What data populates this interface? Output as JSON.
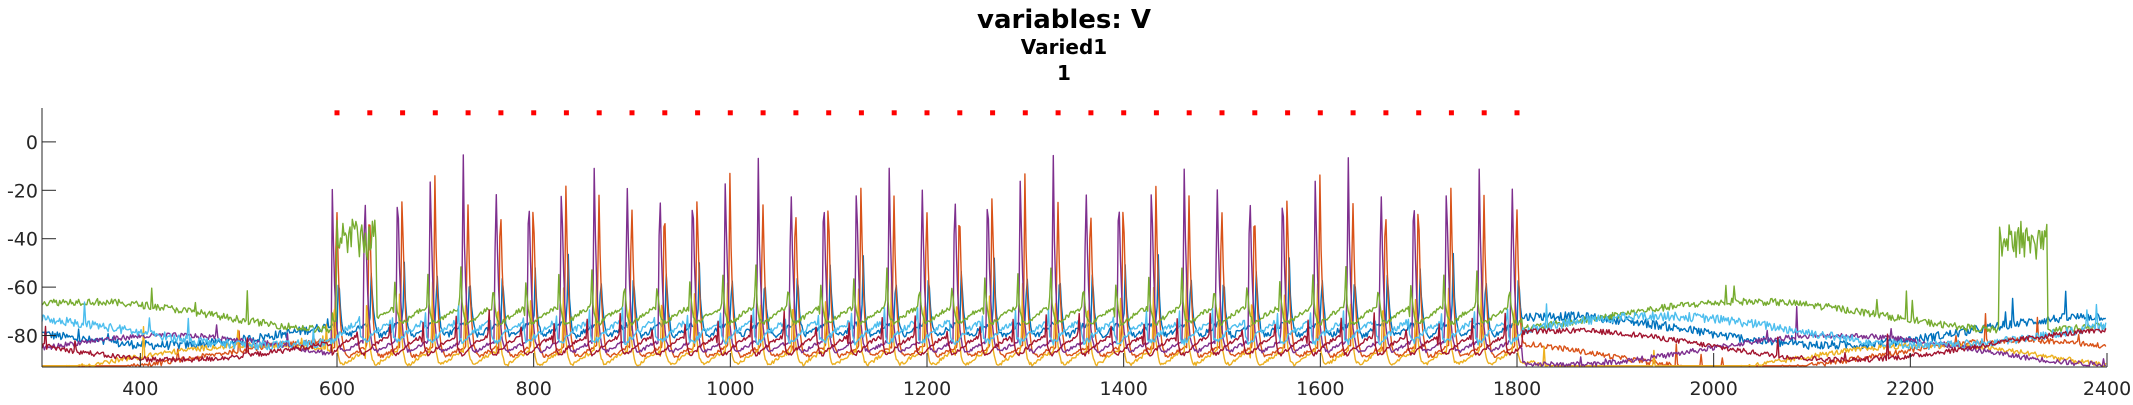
{
  "chart_data": {
    "type": "line",
    "title": "variables: V",
    "subtitle": "Varied1",
    "subtitle2": "1",
    "xlabel": "",
    "ylabel": "",
    "xlim": [
      300,
      2400
    ],
    "ylim": [
      -93,
      14
    ],
    "xticks": [
      400,
      600,
      800,
      1000,
      1200,
      1400,
      1600,
      1800,
      2000,
      2200,
      2400
    ],
    "yticks": [
      0,
      -20,
      -40,
      -60,
      -80
    ],
    "grid": false,
    "stim_window": [
      600,
      1800
    ],
    "stim_count": 37,
    "stim_y": 12,
    "stim_color": "#ff0000",
    "series": [
      {
        "color": "#0072bd",
        "rest": -78,
        "spike_peak": -45,
        "noise": 2.5
      },
      {
        "color": "#d95319",
        "rest": -88,
        "spike_peak": -10,
        "noise": 1.5
      },
      {
        "color": "#edb120",
        "rest": -90,
        "spike_peak": -55,
        "noise": 1.5
      },
      {
        "color": "#7e2f8e",
        "rest": -86,
        "spike_peak": -5,
        "noise": 1.5
      },
      {
        "color": "#77ac30",
        "rest": -72,
        "spike_peak": -50,
        "noise": 2.0
      },
      {
        "color": "#4dbeee",
        "rest": -78,
        "spike_peak": -68,
        "noise": 2.5
      },
      {
        "color": "#a2142f",
        "rest": -84,
        "spike_peak": -70,
        "noise": 1.5
      }
    ]
  }
}
